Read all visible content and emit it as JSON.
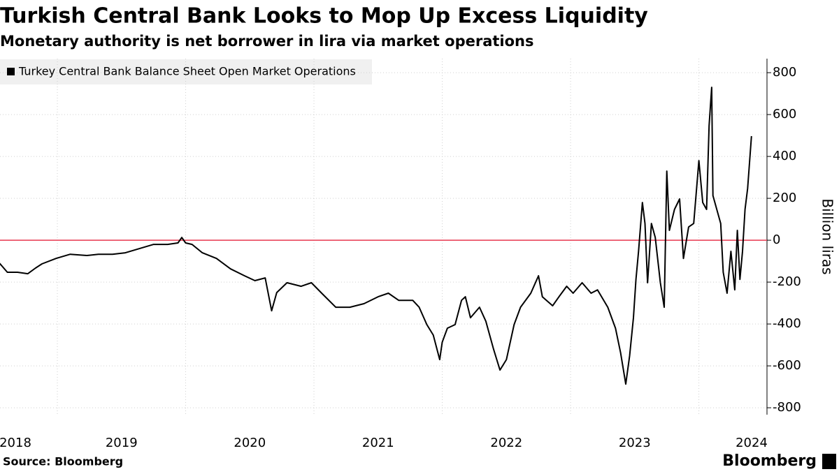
{
  "chart_data": {
    "type": "line",
    "title": "Turkish Central Bank Looks to Mop Up Excess Liquidity",
    "subtitle": "Monetary authority is net borrower in lira via market operations",
    "y_axis_label": "Billion liras",
    "source": "Source: Bloomberg",
    "brand": "Bloomberg",
    "x": [
      2018.55,
      2018.61,
      2018.69,
      2018.77,
      2018.83,
      2018.88,
      2018.99,
      2019.1,
      2019.23,
      2019.32,
      2019.43,
      2019.53,
      2019.64,
      2019.75,
      2019.86,
      2019.94,
      2019.97,
      2020.0,
      2020.05,
      2020.13,
      2020.24,
      2020.35,
      2020.46,
      2020.54,
      2020.62,
      2020.67,
      2020.71,
      2020.79,
      2020.9,
      2020.98,
      2021.06,
      2021.17,
      2021.28,
      2021.39,
      2021.5,
      2021.58,
      2021.66,
      2021.77,
      2021.82,
      2021.88,
      2021.93,
      2021.98,
      2022.0,
      2022.04,
      2022.1,
      2022.15,
      2022.18,
      2022.22,
      2022.29,
      2022.34,
      2022.4,
      2022.45,
      2022.5,
      2022.56,
      2022.61,
      2022.69,
      2022.75,
      2022.78,
      2022.86,
      2022.91,
      2022.97,
      2023.02,
      2023.09,
      2023.16,
      2023.21,
      2023.29,
      2023.35,
      2023.39,
      2023.43,
      2023.46,
      2023.49,
      2023.51,
      2023.53,
      2023.56,
      2023.58,
      2023.6,
      2023.63,
      2023.66,
      2023.7,
      2023.73,
      2023.75,
      2023.77,
      2023.81,
      2023.85,
      2023.88,
      2023.92,
      2023.96,
      2024.0,
      2024.03,
      2024.06,
      2024.08,
      2024.1,
      2024.11,
      2024.14,
      2024.17,
      2024.19,
      2024.22,
      2024.25,
      2024.28,
      2024.3,
      2024.32,
      2024.34,
      2024.36,
      2024.38,
      2024.41
    ],
    "series": [
      {
        "name": "Turkey Central Bank Balance Sheet Open Market Operations",
        "color": "#000000",
        "values": [
          -110,
          -153,
          -153,
          -160,
          -133,
          -113,
          -87,
          -67,
          -73,
          -67,
          -67,
          -60,
          -40,
          -20,
          -20,
          -13,
          13,
          -13,
          -20,
          -60,
          -87,
          -137,
          -170,
          -193,
          -180,
          -337,
          -250,
          -203,
          -220,
          -203,
          -253,
          -320,
          -320,
          -303,
          -270,
          -253,
          -287,
          -287,
          -320,
          -403,
          -453,
          -570,
          -487,
          -420,
          -403,
          -287,
          -270,
          -370,
          -320,
          -387,
          -520,
          -620,
          -570,
          -403,
          -320,
          -253,
          -170,
          -270,
          -313,
          -270,
          -220,
          -253,
          -203,
          -253,
          -237,
          -320,
          -420,
          -537,
          -687,
          -553,
          -370,
          -187,
          -53,
          180,
          80,
          -203,
          80,
          13,
          -203,
          -320,
          330,
          47,
          147,
          197,
          -87,
          63,
          80,
          380,
          180,
          147,
          547,
          730,
          213,
          147,
          80,
          -153,
          -253,
          -53,
          -237,
          47,
          -187,
          -53,
          147,
          247,
          497
        ]
      }
    ],
    "xlim": [
      2018.553,
      2024.531
    ],
    "xticks": [
      {
        "value": 2018.5,
        "label": "2018"
      },
      {
        "value": 2019.5,
        "label": "2019"
      },
      {
        "value": 2020.5,
        "label": "2020"
      },
      {
        "value": 2021.5,
        "label": "2021"
      },
      {
        "value": 2022.5,
        "label": "2022"
      },
      {
        "value": 2023.5,
        "label": "2023"
      },
      {
        "value": 2024.5,
        "label": "2024"
      }
    ],
    "xgrid": [
      2019,
      2020,
      2021,
      2022,
      2023,
      2024
    ],
    "ylim": [
      -833,
      867
    ],
    "yticks": [
      -800,
      -600,
      -400,
      -200,
      0,
      200,
      400,
      600,
      800
    ],
    "reference_line": {
      "value": 0,
      "color": "#e8384f"
    },
    "grid": true
  }
}
